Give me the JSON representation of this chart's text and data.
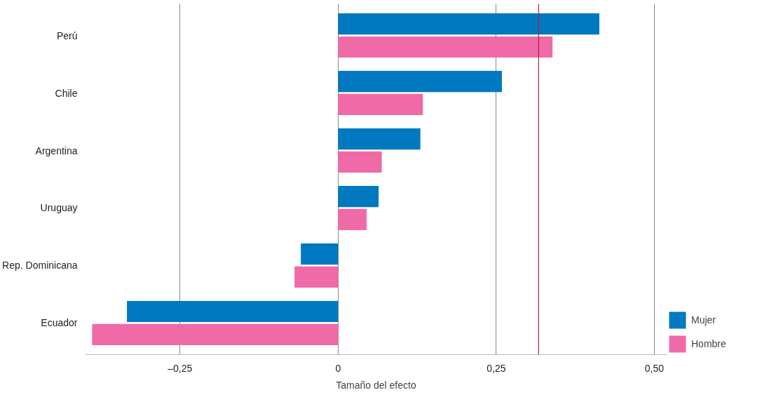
{
  "chart_data": {
    "type": "bar",
    "orientation": "horizontal",
    "xlabel": "Tamaño del efecto",
    "categories": [
      "Perú",
      "Chile",
      "Argentina",
      "Uruguay",
      "Rep. Dominicana",
      "Ecuador"
    ],
    "series": [
      {
        "name": "Mujer",
        "color": "#0079c1",
        "values": [
          0.413,
          0.259,
          0.13,
          0.064,
          -0.059,
          -0.334
        ]
      },
      {
        "name": "Hombre",
        "color": "#f06aa8",
        "values": [
          0.339,
          0.134,
          0.069,
          0.045,
          -0.069,
          -0.389
        ]
      }
    ],
    "xlim": [
      -0.4,
      0.52
    ],
    "xticks": [
      {
        "value": -0.25,
        "label": "–0,25"
      },
      0,
      {
        "value": 0.25,
        "label": "0,25"
      },
      {
        "value": 0.5,
        "label": "0,50"
      }
    ],
    "ref_lines": [
      {
        "axis": "x",
        "value": 0.317,
        "color": "#b22234"
      }
    ],
    "grid": "x",
    "legend": "bottom right"
  }
}
